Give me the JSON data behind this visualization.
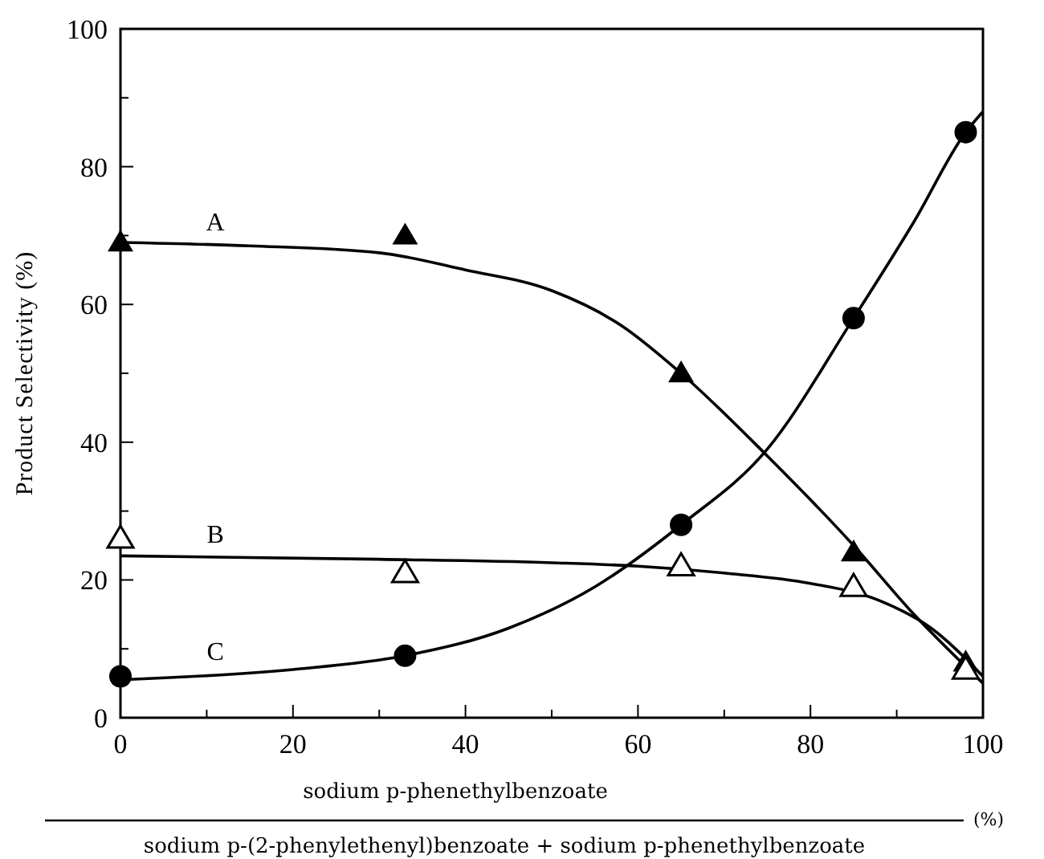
{
  "chart_data": {
    "type": "scatter",
    "ylabel": "Product Selectivity (%)",
    "xlabel": "sodium p-phenethylbenzoate",
    "xlim": [
      0,
      100
    ],
    "ylim": [
      0,
      100
    ],
    "xticks": [
      0,
      {
        "value": 10,
        "label": null
      },
      20,
      {
        "value": 30,
        "label": null
      },
      40,
      {
        "value": 50,
        "label": null
      },
      60,
      {
        "value": 70,
        "label": null
      },
      80,
      {
        "value": 90,
        "label": null
      },
      100
    ],
    "yticks": [
      0,
      {
        "value": 10,
        "label": null
      },
      20,
      {
        "value": 30,
        "label": null
      },
      40,
      {
        "value": 50,
        "label": null
      },
      60,
      {
        "value": 70,
        "label": null
      },
      80,
      {
        "value": 90,
        "label": null
      },
      100
    ],
    "grid": false,
    "series": [
      {
        "marker": "triangle",
        "color": "#000000",
        "x": [
          0,
          33,
          65,
          85,
          98
        ],
        "values": [
          69,
          70,
          50,
          24,
          8
        ]
      },
      {
        "marker": "triangle-open",
        "color": "#000000",
        "x": [
          0,
          33,
          65,
          85,
          98
        ],
        "values": [
          26,
          21,
          22,
          19,
          7
        ]
      },
      {
        "marker": "circle",
        "color": "#000000",
        "x": [
          0,
          33,
          65,
          85,
          98
        ],
        "values": [
          6,
          9,
          28,
          58,
          85
        ]
      },
      {
        "type": "line",
        "name": "A",
        "color": "#000000",
        "x": [
          0,
          15,
          30,
          40,
          50,
          58,
          65,
          75,
          85,
          92,
          100
        ],
        "values": [
          69,
          68.5,
          67.5,
          65,
          62,
          57,
          50,
          38,
          25,
          15,
          5
        ]
      },
      {
        "type": "line",
        "name": "B",
        "color": "#000000",
        "x": [
          0,
          30,
          50,
          60,
          70,
          80,
          88,
          94,
          100
        ],
        "values": [
          23.5,
          23,
          22.5,
          22,
          21,
          19.5,
          17,
          13,
          6
        ]
      },
      {
        "type": "line",
        "name": "C",
        "color": "#000000",
        "x": [
          0,
          20,
          33,
          45,
          55,
          65,
          75,
          85,
          92,
          98,
          100
        ],
        "values": [
          5.5,
          7,
          9,
          13,
          19,
          28,
          39,
          58,
          72,
          85,
          88
        ]
      }
    ],
    "annotations": [
      "sodium p-(2-phenylethenyl)benzoate + sodium p-phenethylbenzoate",
      "(%)"
    ]
  }
}
